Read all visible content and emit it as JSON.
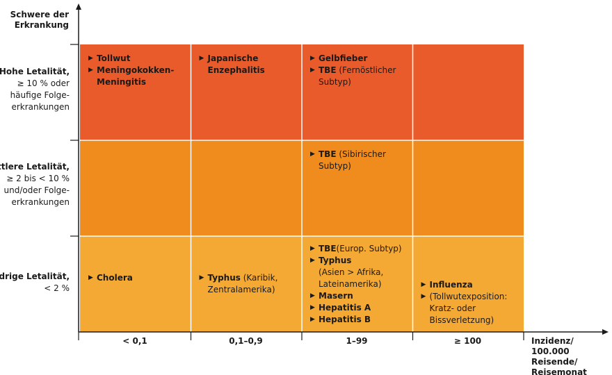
{
  "chart_data": {
    "type": "table",
    "title": "",
    "ylabel": "Schwere der Erkrankung",
    "xlabel": "Inzidenz/ 100.000 Reisende/ Reisemonat",
    "columns": [
      "< 0,1",
      "0,1–0,9",
      "1–99",
      "≥ 100"
    ],
    "rows": [
      {
        "label": "Hohe Letalität,",
        "detail": "≥ 10 % oder\nhäufige Folge-\nerkrankungen",
        "color": "#EA5B2B"
      },
      {
        "label": "Mittlere Letalität,",
        "detail": "≥ 2 bis < 10 %\nund/oder Folge-\nerkrankungen",
        "color": "#F08B1E"
      },
      {
        "label": "Niedrige Letalität,",
        "detail": "< 2 %",
        "color": "#F5A935"
      }
    ],
    "cells": [
      {
        "row": 0,
        "col": 0,
        "items": [
          {
            "name": "Tollwut",
            "note": ""
          },
          {
            "name": "Meningokokken-\nMeningitis",
            "note": ""
          }
        ]
      },
      {
        "row": 0,
        "col": 1,
        "items": [
          {
            "name": "Japanische\nEnzephalitis",
            "note": ""
          }
        ]
      },
      {
        "row": 0,
        "col": 2,
        "items": [
          {
            "name": "Gelbfieber",
            "note": ""
          },
          {
            "name": "TBE",
            "note": " (Fernöstlicher\nSubtyp)"
          }
        ]
      },
      {
        "row": 0,
        "col": 3,
        "items": []
      },
      {
        "row": 1,
        "col": 0,
        "items": []
      },
      {
        "row": 1,
        "col": 1,
        "items": []
      },
      {
        "row": 1,
        "col": 2,
        "items": [
          {
            "name": "TBE",
            "note": " (Sibirischer\nSubtyp)"
          }
        ]
      },
      {
        "row": 1,
        "col": 3,
        "items": []
      },
      {
        "row": 2,
        "col": 0,
        "items": [
          {
            "name": "Cholera",
            "note": ""
          }
        ]
      },
      {
        "row": 2,
        "col": 1,
        "items": [
          {
            "name": "Typhus",
            "note": " (Karibik,\nZentralamerika)"
          }
        ]
      },
      {
        "row": 2,
        "col": 2,
        "items": [
          {
            "name": "TBE",
            "note": "(Europ. Subtyp)"
          },
          {
            "name": "Typhus",
            "note": "\n(Asien > Afrika,\nLateinamerika)"
          },
          {
            "name": "Masern",
            "note": ""
          },
          {
            "name": "Hepatitis A",
            "note": ""
          },
          {
            "name": "Hepatitis B",
            "note": ""
          }
        ]
      },
      {
        "row": 2,
        "col": 3,
        "items": [
          {
            "name": "Influenza",
            "note": ""
          },
          {
            "name": "",
            "note": "(Tollwutexposition:\nKratz- oder\nBissverletzung)"
          }
        ]
      }
    ],
    "axis_color": "#1a1a1a",
    "gridline_color": "#ffffff"
  }
}
